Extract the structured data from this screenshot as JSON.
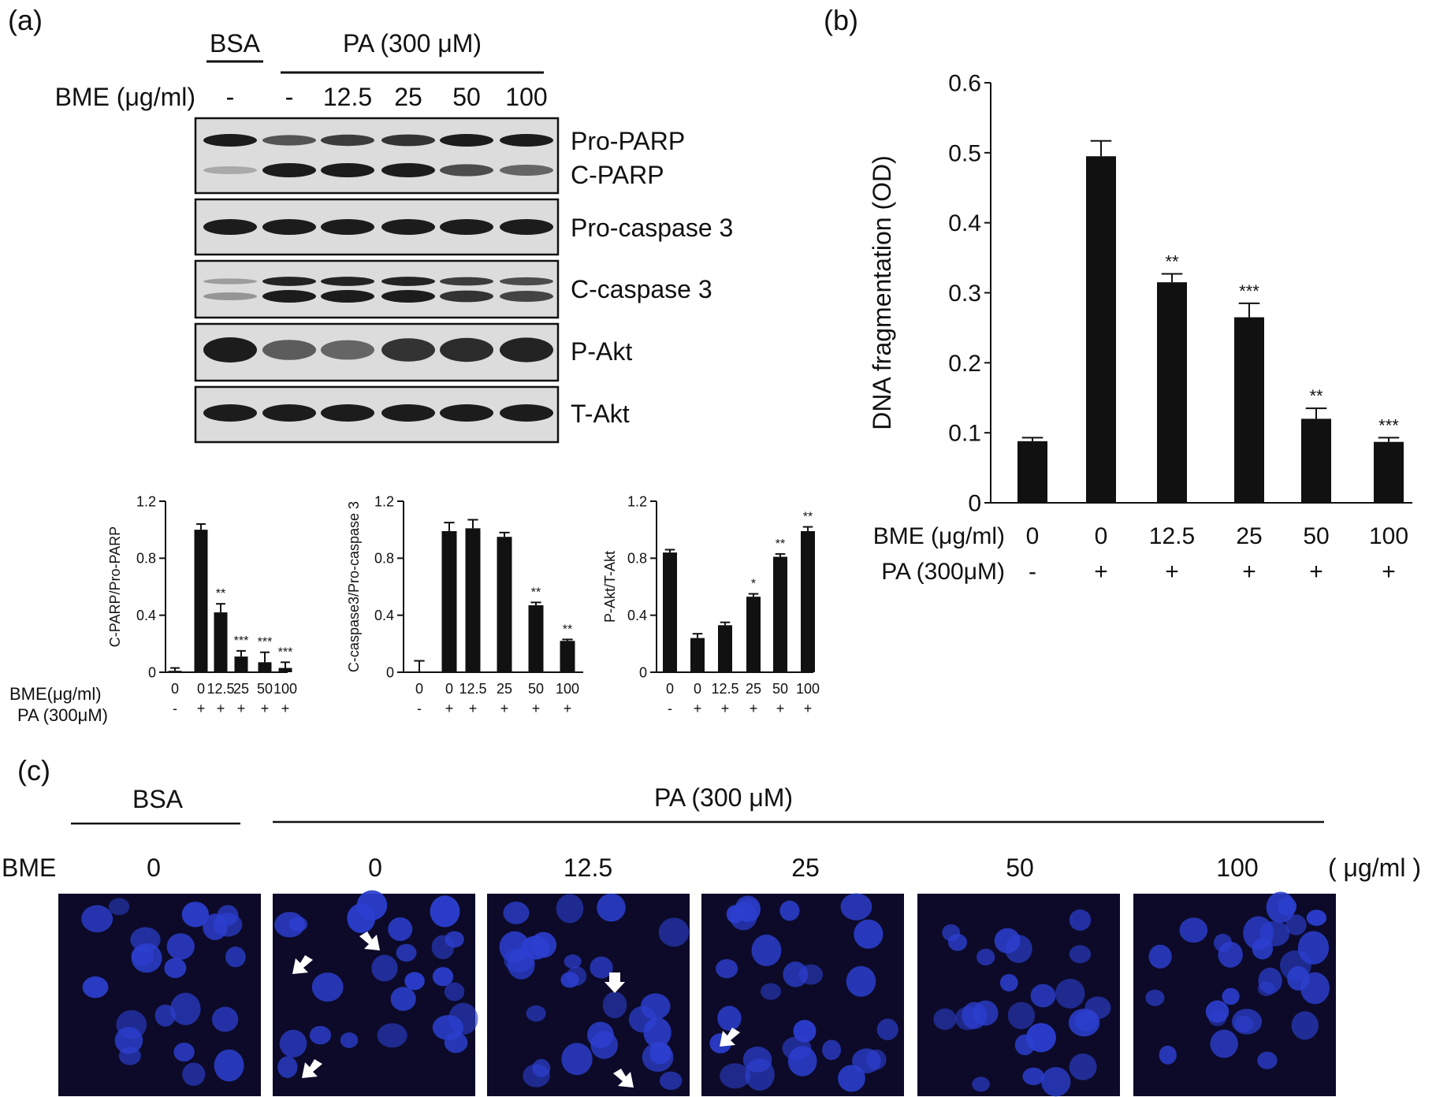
{
  "panel_a": {
    "panel_label": "(a)",
    "header": {
      "bsa": "BSA",
      "pa": "PA (300 μM)",
      "bme_label": "BME (μg/ml)",
      "lanes": [
        "-",
        "-",
        "12.5",
        "25",
        "50",
        "100"
      ]
    },
    "blots": [
      "Pro-PARP",
      "C-PARP",
      "Pro-caspase 3",
      "C-caspase 3",
      "P-Akt",
      "T-Akt"
    ],
    "row_labels": {
      "bme": "BME(μg/ml)",
      "pa": "PA (300μM)"
    }
  },
  "panel_b": {
    "panel_label": "(b)"
  },
  "panel_c": {
    "panel_label": "(c)",
    "bsa": "BSA",
    "pa": "PA (300 μM)",
    "bme_label": "BME",
    "unit": "( μg/ml )",
    "conditions": [
      "0",
      "0",
      "12.5",
      "25",
      "50",
      "100"
    ]
  },
  "colors": {
    "bar": "#111111",
    "nuclei": "#2c3fd0",
    "background_image": "#0c0a28",
    "arrow": "#ffffff"
  },
  "chart_data": [
    {
      "id": "c-parp",
      "type": "bar",
      "ylabel": "C-PARP/Pro-PARP",
      "ylim": [
        0,
        1.2
      ],
      "yticks": [
        "0",
        "0.4",
        "0.8",
        "1.2"
      ],
      "categories": [
        "0",
        "0",
        "12.5",
        "25",
        "50",
        "100"
      ],
      "pa": [
        "-",
        "+",
        "+",
        "+",
        "+",
        "+"
      ],
      "values": [
        0.01,
        1.0,
        0.42,
        0.11,
        0.07,
        0.03
      ],
      "errors": [
        0.02,
        0.04,
        0.06,
        0.04,
        0.07,
        0.04
      ],
      "significance": [
        "",
        "",
        "**",
        "***",
        "***",
        "***"
      ]
    },
    {
      "id": "c-caspase3",
      "type": "bar",
      "ylabel": "C-caspase3/Pro-caspase 3",
      "ylim": [
        0,
        1.2
      ],
      "yticks": [
        "0",
        "0.4",
        "0.8",
        "1.2"
      ],
      "categories": [
        "0",
        "0",
        "12.5",
        "25",
        "50",
        "100"
      ],
      "pa": [
        "-",
        "+",
        "+",
        "+",
        "+",
        "+"
      ],
      "values": [
        0.0,
        0.99,
        1.01,
        0.95,
        0.47,
        0.22
      ],
      "errors": [
        0.08,
        0.06,
        0.06,
        0.03,
        0.02,
        0.01
      ],
      "significance": [
        "",
        "",
        "",
        "",
        "**",
        "**"
      ]
    },
    {
      "id": "p-akt",
      "type": "bar",
      "ylabel": "P-Akt/T-Akt",
      "ylim": [
        0,
        1.2
      ],
      "yticks": [
        "0",
        "0.4",
        "0.8",
        "1.2"
      ],
      "categories": [
        "0",
        "0",
        "12.5",
        "25",
        "50",
        "100"
      ],
      "pa": [
        "-",
        "+",
        "+",
        "+",
        "+",
        "+"
      ],
      "values": [
        0.84,
        0.24,
        0.33,
        0.53,
        0.81,
        0.99
      ],
      "errors": [
        0.02,
        0.03,
        0.02,
        0.02,
        0.02,
        0.03
      ],
      "significance": [
        "",
        "",
        "",
        "*",
        "**",
        "**"
      ]
    },
    {
      "id": "dna-fragmentation",
      "type": "bar",
      "ylabel": "DNA fragmentation (OD)",
      "ylim": [
        0,
        0.6
      ],
      "yticks": [
        "0",
        "0.1",
        "0.2",
        "0.3",
        "0.4",
        "0.5",
        "0.6"
      ],
      "row_labels": {
        "bme": "BME (μg/ml)",
        "pa": "PA (300μM)"
      },
      "categories": [
        "0",
        "0",
        "12.5",
        "25",
        "50",
        "100"
      ],
      "pa": [
        "-",
        "+",
        "+",
        "+",
        "+",
        "+"
      ],
      "values": [
        0.088,
        0.495,
        0.315,
        0.265,
        0.12,
        0.087
      ],
      "errors": [
        0.005,
        0.022,
        0.012,
        0.02,
        0.015,
        0.006
      ],
      "significance": [
        "",
        "",
        "**",
        "***",
        "**",
        "***"
      ]
    }
  ]
}
